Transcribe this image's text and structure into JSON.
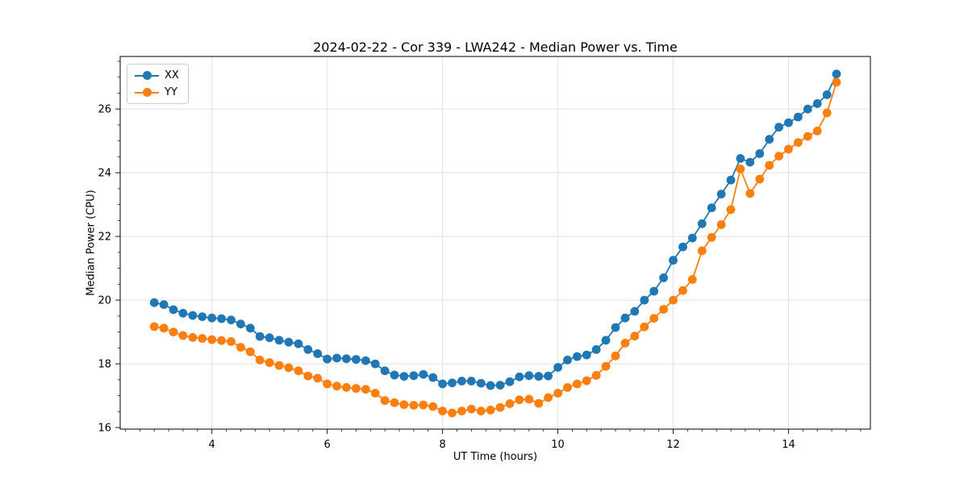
{
  "chart_data": {
    "type": "line",
    "title": "2024-02-22 - Cor 339 - LWA242 - Median Power vs. Time",
    "xlabel": "UT Time (hours)",
    "ylabel": "Median Power (CPU)",
    "xlim": [
      2.41,
      15.42
    ],
    "ylim": [
      15.95,
      27.65
    ],
    "xticks": [
      4,
      6,
      8,
      10,
      12,
      14
    ],
    "yticks": [
      16,
      18,
      20,
      22,
      24,
      26
    ],
    "minor_xtick_step": 0.25,
    "minor_ytick_step": 0.5,
    "grid": true,
    "grid_color": "#e2e2e2",
    "legend_position": "upper-left",
    "x": [
      3.0,
      3.167,
      3.333,
      3.5,
      3.667,
      3.833,
      4.0,
      4.167,
      4.333,
      4.5,
      4.667,
      4.833,
      5.0,
      5.167,
      5.333,
      5.5,
      5.667,
      5.833,
      6.0,
      6.167,
      6.333,
      6.5,
      6.667,
      6.833,
      7.0,
      7.167,
      7.333,
      7.5,
      7.667,
      7.833,
      8.0,
      8.167,
      8.333,
      8.5,
      8.667,
      8.833,
      9.0,
      9.167,
      9.333,
      9.5,
      9.667,
      9.833,
      10.0,
      10.167,
      10.333,
      10.5,
      10.667,
      10.833,
      11.0,
      11.167,
      11.333,
      11.5,
      11.667,
      11.833,
      12.0,
      12.167,
      12.333,
      12.5,
      12.667,
      12.833,
      13.0,
      13.167,
      13.333,
      13.5,
      13.667,
      13.833,
      14.0,
      14.167,
      14.333,
      14.5,
      14.667,
      14.833
    ],
    "series": [
      {
        "name": "XX",
        "color": "#1f77b4",
        "values": [
          19.92,
          19.86,
          19.7,
          19.59,
          19.52,
          19.48,
          19.44,
          19.42,
          19.38,
          19.25,
          19.12,
          18.86,
          18.82,
          18.74,
          18.68,
          18.63,
          18.45,
          18.32,
          18.15,
          18.18,
          18.16,
          18.14,
          18.1,
          18.0,
          17.78,
          17.65,
          17.61,
          17.63,
          17.67,
          17.57,
          17.37,
          17.4,
          17.46,
          17.46,
          17.39,
          17.32,
          17.33,
          17.44,
          17.59,
          17.63,
          17.61,
          17.62,
          17.89,
          18.12,
          18.23,
          18.28,
          18.45,
          18.74,
          19.14,
          19.44,
          19.65,
          20.0,
          20.28,
          20.7,
          21.25,
          21.67,
          21.95,
          22.4,
          22.9,
          23.33,
          23.77,
          24.45,
          24.33,
          24.6,
          25.05,
          25.43,
          25.57,
          25.75,
          26.0,
          26.17,
          26.45,
          27.1
        ]
      },
      {
        "name": "YY",
        "color": "#ff7f0e",
        "values": [
          19.17,
          19.12,
          19.0,
          18.89,
          18.83,
          18.8,
          18.76,
          18.73,
          18.7,
          18.52,
          18.38,
          18.12,
          18.04,
          17.95,
          17.88,
          17.78,
          17.62,
          17.55,
          17.37,
          17.3,
          17.26,
          17.23,
          17.2,
          17.08,
          16.85,
          16.78,
          16.72,
          16.7,
          16.71,
          16.66,
          16.52,
          16.46,
          16.52,
          16.58,
          16.52,
          16.55,
          16.63,
          16.75,
          16.87,
          16.89,
          16.76,
          16.94,
          17.08,
          17.26,
          17.37,
          17.47,
          17.64,
          17.92,
          18.25,
          18.65,
          18.87,
          19.16,
          19.43,
          19.71,
          20.0,
          20.3,
          20.65,
          21.55,
          21.97,
          22.37,
          22.84,
          24.12,
          23.35,
          23.8,
          24.23,
          24.52,
          24.74,
          24.95,
          25.14,
          25.31,
          25.88,
          26.84
        ]
      }
    ]
  }
}
